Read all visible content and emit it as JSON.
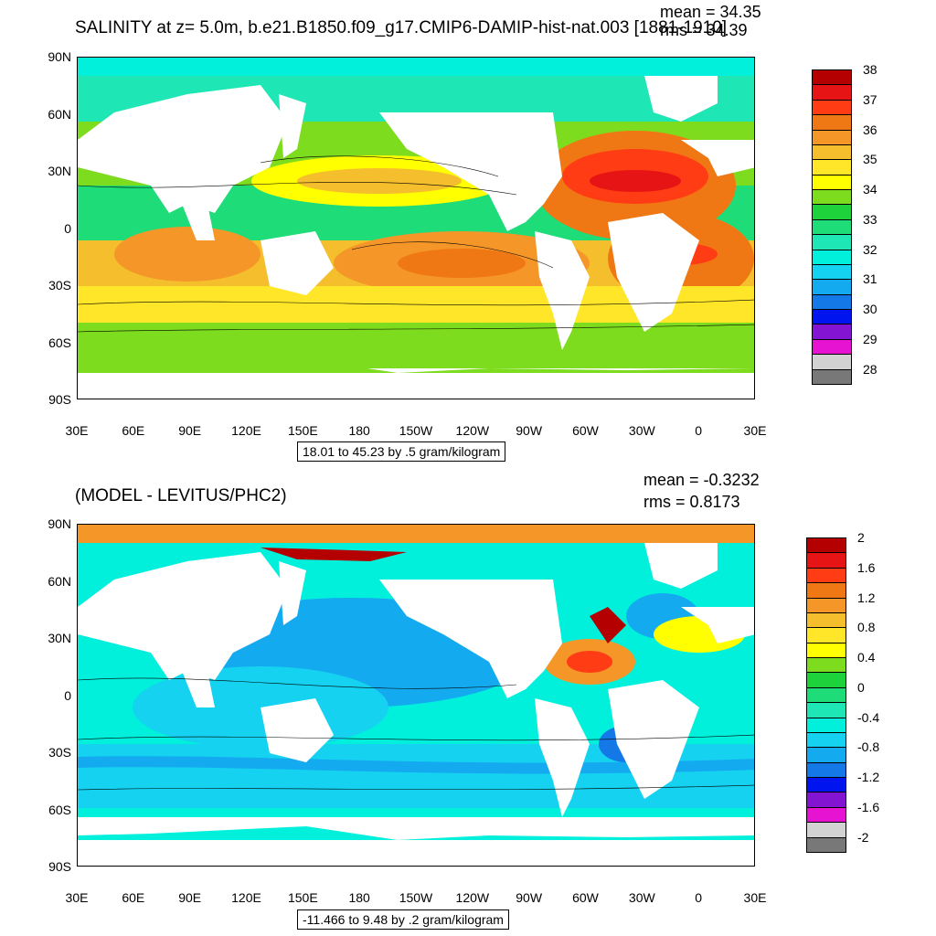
{
  "panel1": {
    "title": "SALINITY at z=   5.0m, b.e21.B1850.f09_g17.CMIP6-DAMIP-hist-nat.003 [1881-1910]",
    "mean": "mean = 34.35",
    "rms": "rms = 34.39",
    "info": "18.01 to 45.23 by .5 gram/kilogram",
    "colorbar_labels": [
      "38",
      "37",
      "36",
      "35",
      "34",
      "33",
      "32",
      "31",
      "30",
      "29",
      "28"
    ],
    "colorbar_colors": [
      "#b40000",
      "#e61414",
      "#ff3c14",
      "#f07814",
      "#f59628",
      "#f5be2d",
      "#ffe628",
      "#ffff00",
      "#7ddc1e",
      "#1ed23c",
      "#1edc78",
      "#1ee6b4",
      "#00f0dc",
      "#14d2f0",
      "#14aaf0",
      "#1478e6",
      "#0014f0",
      "#8214d2",
      "#e614d2",
      "#d2d2d2",
      "#787878"
    ]
  },
  "panel2": {
    "title": "(MODEL - LEVITUS/PHC2)",
    "mean": "mean = -0.3232",
    "rms": "rms = 0.8173",
    "info": "-11.466 to 9.48 by .2 gram/kilogram",
    "colorbar_labels": [
      "2",
      "1.6",
      "1.2",
      "0.8",
      "0.4",
      "0",
      "-0.4",
      "-0.8",
      "-1.2",
      "-1.6",
      "-2"
    ],
    "colorbar_colors": [
      "#b40000",
      "#e61414",
      "#ff3c14",
      "#f07814",
      "#f59628",
      "#f5be2d",
      "#ffe628",
      "#ffff00",
      "#7ddc1e",
      "#1ed23c",
      "#1edc78",
      "#1ee6b4",
      "#00f0dc",
      "#14d2f0",
      "#14aaf0",
      "#1478e6",
      "#0014f0",
      "#8214d2",
      "#e614d2",
      "#d2d2d2",
      "#787878"
    ]
  },
  "axes": {
    "lat_labels": [
      "90N",
      "60N",
      "30N",
      "0",
      "30S",
      "60S",
      "90S"
    ],
    "lon_labels": [
      "30E",
      "60E",
      "90E",
      "120E",
      "150E",
      "180",
      "150W",
      "120W",
      "90W",
      "60W",
      "30W",
      "0",
      "30E"
    ]
  }
}
